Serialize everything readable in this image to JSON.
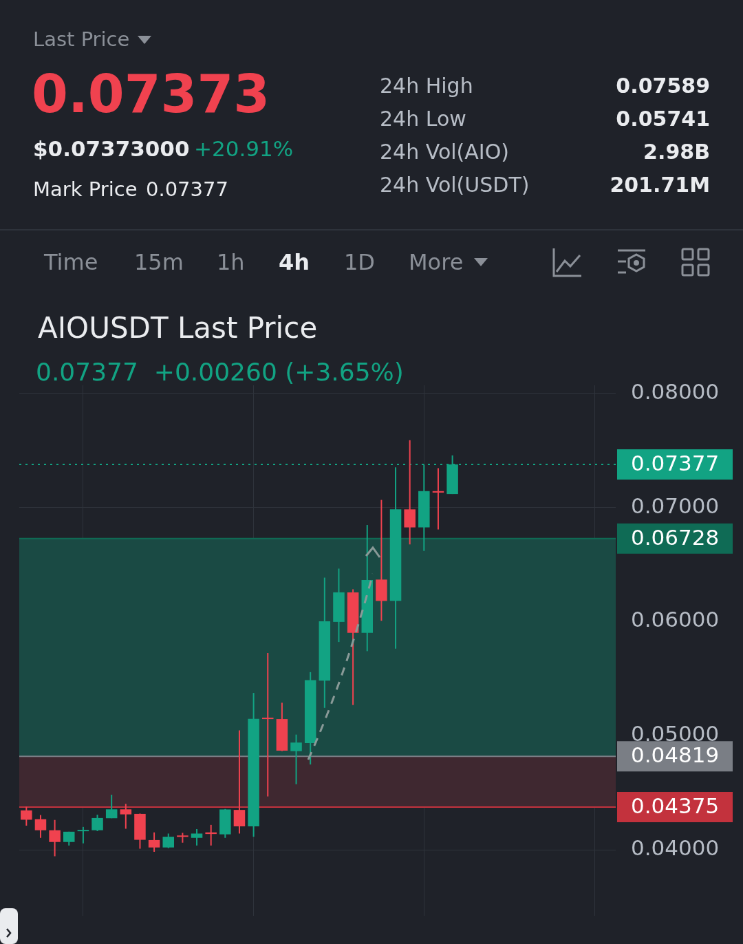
{
  "chart_data": [
    {
      "type": "other",
      "title": "Last Price",
      "annotations": [
        "0.07373",
        "$0.07373000",
        "+20.91%",
        "Mark Price",
        "0.07377",
        "24h High",
        "0.07589",
        "24h Low",
        "0.05741",
        "24h Vol(AIO)",
        "2.98B",
        "24h Vol(USDT)",
        "201.71M",
        "Time",
        "15m",
        "1h",
        "4h",
        "1D",
        "More"
      ]
    },
    {
      "type": "candlestick",
      "title": "AIOUSDT Last Price",
      "subtitle": "0.07377  +0.00260 (+3.65%)",
      "categories": [
        null,
        null,
        null,
        null,
        null,
        null,
        null,
        null,
        null,
        null,
        null,
        null,
        null,
        null,
        null,
        null,
        null,
        null,
        null,
        null,
        null,
        null,
        null,
        null,
        null,
        null,
        null,
        null,
        null,
        null,
        null,
        null,
        null,
        null,
        null,
        null,
        null,
        null,
        null,
        null,
        null,
        null
      ],
      "ohlc": [
        [
          0.04346,
          0.04378,
          0.04212,
          0.04264
        ],
        [
          0.04269,
          0.04305,
          0.04105,
          0.04172
        ],
        [
          0.04172,
          0.04262,
          0.03944,
          0.04069
        ],
        [
          0.04069,
          0.04159,
          0.04038,
          0.04159
        ],
        [
          0.04168,
          0.04201,
          0.04057,
          0.04175
        ],
        [
          0.04172,
          0.04308,
          0.04164,
          0.04279
        ],
        [
          0.04277,
          0.04483,
          0.04277,
          0.04355
        ],
        [
          0.04355,
          0.04403,
          0.04185,
          0.04311
        ],
        [
          0.04315,
          0.04318,
          0.0401,
          0.04088
        ],
        [
          0.04086,
          0.04153,
          0.03983,
          0.04021
        ],
        [
          0.04021,
          0.04143,
          0.04015,
          0.04115
        ],
        [
          0.04126,
          0.04149,
          0.04063,
          0.04115
        ],
        [
          0.04105,
          0.04182,
          0.04038,
          0.04143
        ],
        [
          0.04153,
          0.04219,
          0.04038,
          0.04139
        ],
        [
          0.04136,
          0.04358,
          0.04105,
          0.04354
        ],
        [
          0.0435,
          0.05047,
          0.04143,
          0.04206
        ],
        [
          0.04206,
          0.05375,
          0.04115,
          0.05148
        ],
        [
          0.05158,
          0.05725,
          0.04468,
          0.05146
        ],
        [
          0.05146,
          0.05289,
          0.04865,
          0.04869
        ],
        [
          0.04865,
          0.0501,
          0.04575,
          0.0494
        ],
        [
          0.04935,
          0.05557,
          0.04748,
          0.05487
        ],
        [
          0.05483,
          0.06385,
          0.05244,
          0.06003
        ],
        [
          0.05997,
          0.06464,
          0.05821,
          0.06256
        ],
        [
          0.06256,
          0.06283,
          0.05269,
          0.05901
        ],
        [
          0.05901,
          0.06846,
          0.05741,
          0.06364
        ],
        [
          0.06368,
          0.07066,
          0.06007,
          0.06181
        ],
        [
          0.06181,
          0.07351,
          0.05763,
          0.06983
        ],
        [
          0.06983,
          0.07589,
          0.06676,
          0.06825
        ],
        [
          0.06825,
          0.07376,
          0.06619,
          0.07143
        ],
        [
          0.07143,
          0.07344,
          0.06807,
          0.0713
        ],
        [
          0.07117,
          0.07456,
          0.07117,
          0.07377
        ],
        null,
        null,
        null,
        null,
        null,
        null,
        null,
        null,
        null,
        null,
        null
      ],
      "ylim": [
        0.0342,
        0.0807
      ],
      "yticks": [
        {
          "value": 0.04,
          "label": "0.04000"
        },
        {
          "value": 0.05,
          "label": "0.05000"
        },
        {
          "value": 0.06,
          "label": "0.06000"
        },
        {
          "value": 0.07,
          "label": "0.07000"
        },
        {
          "value": 0.08,
          "label": "0.08000"
        }
      ],
      "tick_labels": "y",
      "grid": true,
      "legend": false,
      "ref_lines": [
        {
          "axis": "y",
          "value": 0.07377,
          "label": "0.07377",
          "color": "#12a383",
          "line_style": "dotted"
        },
        {
          "axis": "y",
          "value": 0.06728,
          "label": "0.06728",
          "color": "#0f6b55"
        },
        {
          "axis": "y",
          "value": 0.04819,
          "label": "0.04819",
          "color": "#7a7e85"
        },
        {
          "axis": "y",
          "value": 0.04375,
          "label": "0.04375",
          "color": "#c3323d"
        }
      ],
      "bands": [
        {
          "axis": "y",
          "from": 0.04819,
          "to": 0.06728,
          "color": "#1a4a44"
        },
        {
          "axis": "y",
          "from": 0.04375,
          "to": 0.04819,
          "color": "#3f2830"
        }
      ]
    }
  ]
}
